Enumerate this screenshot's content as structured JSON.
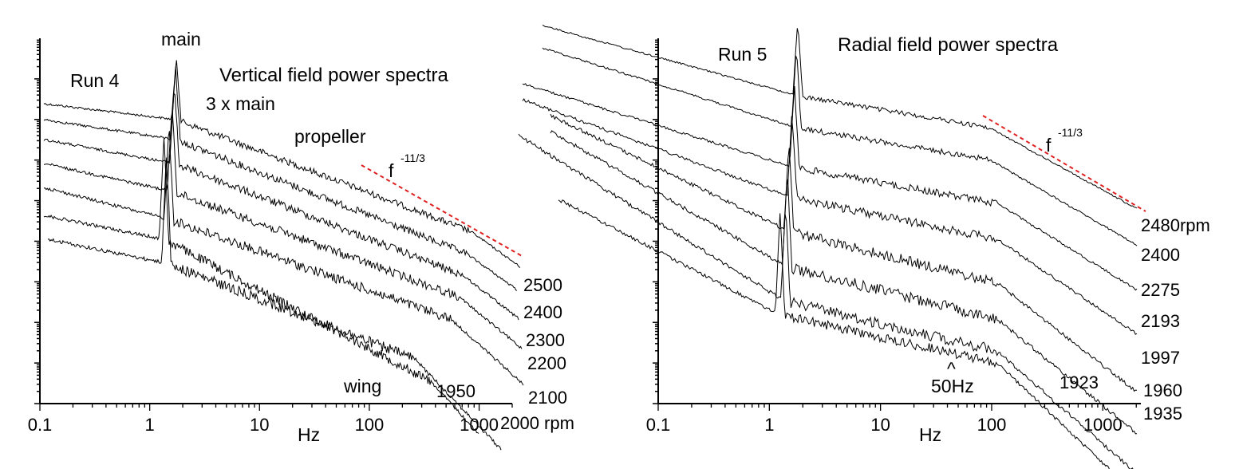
{
  "chart_data": [
    {
      "type": "line",
      "title": "Vertical field power spectra",
      "run_label": "Run 4",
      "xlabel": "Hz",
      "ylabel": "",
      "xscale": "log",
      "xlim": [
        0.1,
        2000
      ],
      "yticks_labeled": false,
      "xticks": [
        "0.1",
        "1",
        "10",
        "100",
        "1000"
      ],
      "annotations": [
        "main",
        "3 x main",
        "propeller",
        "wing",
        "f",
        "-11/3"
      ],
      "reference_line": {
        "label": "f^-11/3",
        "style": "dashed",
        "color": "#e02020"
      },
      "series": [
        {
          "name": "2500",
          "peak_hz": 1.75
        },
        {
          "name": "2400",
          "peak_hz": 1.72
        },
        {
          "name": "2300",
          "peak_hz": 1.68
        },
        {
          "name": "2200",
          "peak_hz": 1.6
        },
        {
          "name": "2100",
          "peak_hz": 1.5
        },
        {
          "name": "1950",
          "peak_hz": 1.35
        },
        {
          "name": "2000 rpm",
          "peak_hz": 1.42
        }
      ]
    },
    {
      "type": "line",
      "title": "Radial field power spectra",
      "run_label": "Run 5",
      "xlabel": "Hz",
      "ylabel": "",
      "xscale": "log",
      "xlim": [
        0.1,
        2200
      ],
      "yticks_labeled": false,
      "xticks": [
        "0.1",
        "1",
        "10",
        "100",
        "1000"
      ],
      "annotations": [
        "f",
        "-11/3",
        "^",
        "50Hz"
      ],
      "reference_line": {
        "label": "f^-11/3",
        "style": "dashed",
        "color": "#e02020"
      },
      "series": [
        {
          "name": "2480rpm",
          "peak_hz": 1.8
        },
        {
          "name": "2400",
          "peak_hz": 1.75
        },
        {
          "name": "2275",
          "peak_hz": 1.68
        },
        {
          "name": "2193",
          "peak_hz": 1.6
        },
        {
          "name": "1997",
          "peak_hz": 1.5
        },
        {
          "name": "1960",
          "peak_hz": 1.45
        },
        {
          "name": "1935",
          "peak_hz": 1.4
        },
        {
          "name": "1923",
          "peak_hz": 1.25
        }
      ]
    }
  ]
}
